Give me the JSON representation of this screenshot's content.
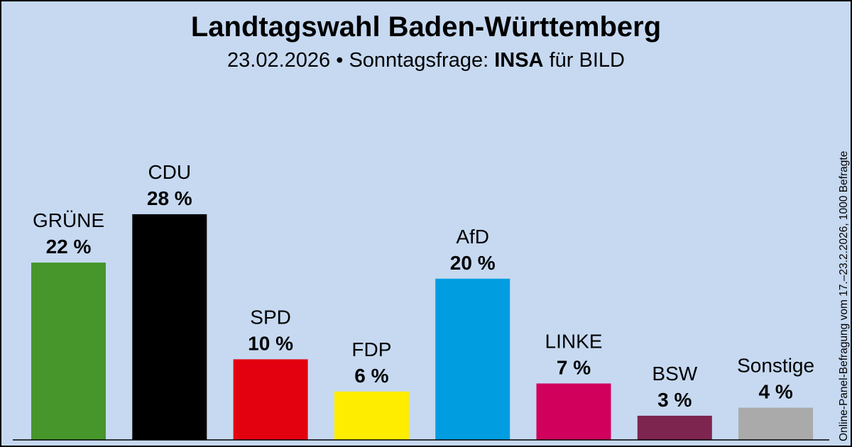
{
  "header": {
    "title": "Landtagswahl Baden-Württemberg",
    "date": "23.02.2026",
    "separator": " • Sonntagsfrage: ",
    "institute": "INSA",
    "client": " für BILD"
  },
  "source_note": "Online-Panel-Befragung vom 17.–23.2.2026, 1000 Befragte",
  "chart_data": {
    "type": "bar",
    "categories": [
      "GRÜNE",
      "CDU",
      "SPD",
      "FDP",
      "AfD",
      "LINKE",
      "BSW",
      "Sonstige"
    ],
    "values": [
      22,
      28,
      10,
      6,
      20,
      7,
      3,
      4
    ],
    "value_labels": [
      "22 %",
      "28 %",
      "10 %",
      "6 %",
      "20 %",
      "7 %",
      "3 %",
      "4 %"
    ],
    "unit": "%",
    "colors": [
      "#46962b",
      "#000000",
      "#e3000f",
      "#ffed00",
      "#009ee0",
      "#d1005c",
      "#7d254f",
      "#aaaaaa"
    ],
    "background": "#c6d9f1",
    "grid": false,
    "legend": "none"
  }
}
